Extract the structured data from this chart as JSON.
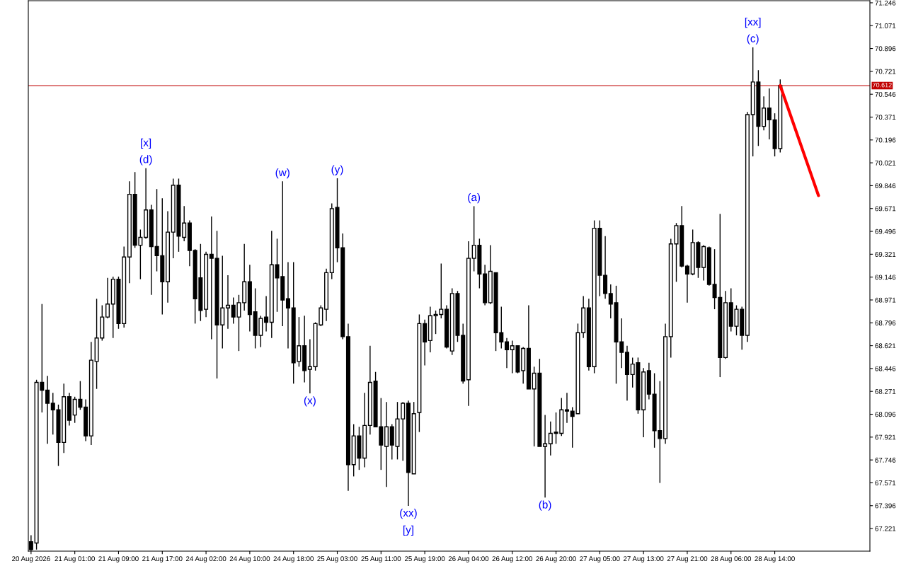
{
  "chart_data": {
    "type": "candlestick",
    "categories": [
      "20 Aug 2026",
      null,
      null,
      null,
      null,
      null,
      null,
      null,
      "21 Aug 01:00",
      null,
      null,
      null,
      null,
      null,
      null,
      null,
      "21 Aug 09:00",
      null,
      null,
      null,
      null,
      null,
      null,
      null,
      "21 Aug 17:00",
      null,
      null,
      null,
      null,
      null,
      null,
      null,
      "24 Aug 02:00",
      null,
      null,
      null,
      null,
      null,
      null,
      null,
      "24 Aug 10:00",
      null,
      null,
      null,
      null,
      null,
      null,
      null,
      "24 Aug 18:00",
      null,
      null,
      null,
      null,
      null,
      null,
      null,
      "25 Aug 03:00",
      null,
      null,
      null,
      null,
      null,
      null,
      null,
      "25 Aug 11:00",
      null,
      null,
      null,
      null,
      null,
      null,
      null,
      "25 Aug 19:00",
      null,
      null,
      null,
      null,
      null,
      null,
      null,
      "26 Aug 04:00",
      null,
      null,
      null,
      null,
      null,
      null,
      null,
      "26 Aug 12:00",
      null,
      null,
      null,
      null,
      null,
      null,
      null,
      "26 Aug 20:00",
      null,
      null,
      null,
      null,
      null,
      null,
      null,
      "27 Aug 05:00",
      null,
      null,
      null,
      null,
      null,
      null,
      null,
      "27 Aug 13:00",
      null,
      null,
      null,
      null,
      null,
      null,
      null,
      "27 Aug 21:00",
      null,
      null,
      null,
      null,
      null,
      null,
      null,
      "28 Aug 06:00",
      null,
      null,
      null,
      null,
      null,
      null,
      null,
      "28 Aug 14:00",
      null,
      null,
      null,
      null,
      null,
      null,
      null,
      null,
      null,
      null,
      null,
      null,
      null,
      null,
      null,
      null,
      null
    ],
    "ylim": [
      67.048,
      71.262
    ],
    "yticks": [
      71.246,
      71.071,
      70.896,
      70.721,
      70.546,
      70.371,
      70.196,
      70.021,
      69.846,
      69.671,
      69.496,
      69.321,
      69.146,
      68.971,
      68.796,
      68.621,
      68.446,
      68.271,
      68.096,
      67.921,
      67.746,
      67.571,
      67.396,
      67.221
    ],
    "grid": false,
    "series": [
      {
        "color": "#000000",
        "ohlc": [
          [
            67.12,
            67.17,
            67.05,
            67.06
          ],
          [
            67.11,
            68.36,
            67.06,
            68.34
          ],
          [
            68.34,
            68.94,
            68.11,
            68.28
          ],
          [
            68.28,
            68.39,
            67.87,
            68.18
          ],
          [
            68.18,
            68.26,
            67.94,
            68.13
          ],
          [
            68.13,
            68.17,
            67.7,
            67.88
          ],
          [
            67.88,
            68.33,
            67.8,
            68.23
          ],
          [
            68.23,
            68.26,
            68.01,
            68.05
          ],
          [
            68.09,
            68.23,
            68.03,
            68.21
          ],
          [
            68.21,
            68.35,
            68.13,
            68.15
          ],
          [
            68.15,
            68.21,
            67.89,
            67.93
          ],
          [
            67.93,
            68.65,
            67.86,
            68.51
          ],
          [
            68.5,
            68.98,
            68.29,
            68.68
          ],
          [
            68.68,
            68.93,
            68.66,
            68.84
          ],
          [
            68.84,
            69.14,
            68.83,
            68.94
          ],
          [
            68.94,
            69.15,
            68.68,
            69.13
          ],
          [
            69.13,
            69.15,
            68.75,
            68.79
          ],
          [
            68.79,
            69.38,
            68.76,
            69.3
          ],
          [
            69.3,
            69.88,
            69.1,
            69.78
          ],
          [
            69.78,
            69.95,
            69.37,
            69.39
          ],
          [
            69.39,
            69.51,
            69.13,
            69.45
          ],
          [
            69.45,
            69.98,
            69.44,
            69.66
          ],
          [
            69.66,
            69.7,
            69.01,
            69.38
          ],
          [
            69.38,
            69.82,
            69.19,
            69.31
          ],
          [
            69.31,
            69.75,
            68.86,
            69.11
          ],
          [
            69.11,
            69.65,
            68.95,
            69.49
          ],
          [
            69.49,
            69.9,
            69.29,
            69.85
          ],
          [
            69.85,
            69.9,
            69.34,
            69.46
          ],
          [
            69.45,
            69.69,
            69.42,
            69.56
          ],
          [
            69.56,
            69.58,
            69.23,
            69.35
          ],
          [
            69.35,
            69.36,
            68.79,
            68.98
          ],
          [
            69.14,
            69.4,
            68.81,
            68.89
          ],
          [
            68.9,
            69.34,
            68.84,
            69.32
          ],
          [
            69.32,
            69.61,
            68.67,
            69.29
          ],
          [
            69.29,
            69.5,
            68.37,
            68.78
          ],
          [
            68.78,
            69.31,
            68.6,
            68.91
          ],
          [
            68.91,
            69.16,
            68.75,
            68.93
          ],
          [
            68.93,
            68.99,
            68.79,
            68.84
          ],
          [
            68.84,
            69.01,
            68.58,
            68.95
          ],
          [
            68.95,
            69.4,
            68.89,
            69.11
          ],
          [
            69.11,
            69.24,
            68.73,
            68.86
          ],
          [
            68.88,
            69.06,
            68.6,
            68.7
          ],
          [
            68.7,
            68.85,
            68.61,
            68.83
          ],
          [
            68.84,
            69.0,
            68.73,
            68.8
          ],
          [
            68.8,
            69.5,
            68.68,
            69.24
          ],
          [
            69.24,
            69.44,
            68.88,
            69.14
          ],
          [
            69.15,
            69.879,
            68.77,
            68.97
          ],
          [
            68.98,
            69.26,
            68.6,
            68.91
          ],
          [
            68.91,
            69.26,
            68.33,
            68.49
          ],
          [
            68.5,
            68.84,
            68.46,
            68.62
          ],
          [
            68.62,
            68.85,
            68.34,
            68.43
          ],
          [
            68.44,
            68.67,
            68.256,
            68.46
          ],
          [
            68.46,
            68.8,
            68.43,
            68.79
          ],
          [
            68.78,
            68.93,
            68.77,
            68.91
          ],
          [
            68.9,
            69.21,
            68.81,
            69.18
          ],
          [
            69.18,
            69.71,
            69.13,
            69.67
          ],
          [
            69.68,
            69.903,
            69.26,
            69.37
          ],
          [
            69.37,
            69.48,
            68.67,
            68.69
          ],
          [
            68.69,
            68.79,
            67.51,
            67.71
          ],
          [
            67.71,
            68.02,
            67.62,
            67.93
          ],
          [
            67.93,
            68.0,
            67.67,
            67.76
          ],
          [
            67.76,
            68.26,
            67.69,
            68.01
          ],
          [
            68.01,
            68.62,
            67.94,
            68.34
          ],
          [
            68.35,
            68.42,
            68.0,
            68.0
          ],
          [
            68.0,
            68.22,
            67.67,
            67.86
          ],
          [
            67.85,
            68.19,
            67.54,
            68.0
          ],
          [
            68.0,
            68.02,
            67.75,
            67.86
          ],
          [
            67.85,
            68.19,
            67.75,
            68.06
          ],
          [
            68.06,
            68.19,
            67.74,
            68.18
          ],
          [
            68.18,
            68.2,
            67.395,
            67.65
          ],
          [
            67.64,
            68.19,
            67.64,
            68.1
          ],
          [
            68.11,
            68.86,
            67.96,
            68.79
          ],
          [
            68.79,
            68.82,
            68.47,
            68.65
          ],
          [
            68.66,
            68.92,
            68.57,
            68.85
          ],
          [
            68.85,
            68.89,
            68.71,
            68.86
          ],
          [
            68.86,
            69.25,
            68.83,
            68.9
          ],
          [
            68.9,
            68.93,
            68.6,
            68.61
          ],
          [
            68.58,
            69.06,
            68.55,
            69.02
          ],
          [
            69.02,
            69.04,
            68.65,
            68.7
          ],
          [
            68.7,
            68.79,
            68.33,
            68.35
          ],
          [
            68.36,
            69.42,
            68.16,
            69.29
          ],
          [
            69.29,
            69.689,
            69.19,
            69.39
          ],
          [
            69.39,
            69.44,
            69.06,
            69.17
          ],
          [
            69.17,
            69.24,
            68.93,
            68.95
          ],
          [
            68.95,
            69.39,
            68.94,
            69.19
          ],
          [
            69.18,
            69.18,
            68.58,
            68.72
          ],
          [
            68.72,
            68.92,
            68.6,
            68.65
          ],
          [
            68.65,
            68.68,
            68.45,
            68.59
          ],
          [
            68.59,
            68.66,
            68.41,
            68.62
          ],
          [
            68.62,
            68.62,
            68.41,
            68.42
          ],
          [
            68.43,
            68.61,
            68.33,
            68.6
          ],
          [
            68.6,
            68.93,
            68.29,
            68.29
          ],
          [
            68.29,
            68.46,
            67.85,
            68.41
          ],
          [
            68.41,
            68.52,
            67.85,
            67.85
          ],
          [
            67.85,
            68.09,
            67.458,
            67.87
          ],
          [
            67.87,
            68.04,
            67.78,
            67.95
          ],
          [
            67.96,
            68.11,
            67.87,
            67.95
          ],
          [
            67.95,
            68.22,
            67.93,
            68.13
          ],
          [
            68.13,
            68.26,
            68.03,
            68.12
          ],
          [
            68.12,
            68.15,
            67.84,
            68.08
          ],
          [
            68.1,
            68.79,
            68.1,
            68.72
          ],
          [
            68.72,
            69.0,
            68.68,
            68.91
          ],
          [
            68.91,
            68.98,
            68.43,
            68.46
          ],
          [
            68.46,
            69.58,
            68.41,
            69.52
          ],
          [
            69.52,
            69.58,
            69.0,
            69.16
          ],
          [
            69.16,
            69.46,
            68.98,
            69.02
          ],
          [
            69.02,
            69.09,
            68.83,
            68.94
          ],
          [
            68.95,
            69.08,
            68.33,
            68.65
          ],
          [
            68.65,
            68.83,
            68.45,
            68.57
          ],
          [
            68.57,
            68.62,
            68.2,
            68.4
          ],
          [
            68.4,
            68.53,
            68.3,
            68.48
          ],
          [
            68.49,
            68.53,
            68.1,
            68.13
          ],
          [
            68.13,
            68.45,
            67.92,
            68.42
          ],
          [
            68.43,
            68.49,
            68.21,
            68.25
          ],
          [
            68.25,
            68.41,
            67.84,
            67.97
          ],
          [
            67.97,
            68.35,
            67.57,
            67.91
          ],
          [
            67.91,
            68.79,
            67.87,
            68.69
          ],
          [
            68.69,
            69.44,
            68.53,
            69.4
          ],
          [
            69.4,
            69.56,
            69.11,
            69.54
          ],
          [
            69.54,
            69.69,
            69.22,
            69.23
          ],
          [
            69.23,
            69.24,
            68.95,
            69.17
          ],
          [
            69.17,
            69.51,
            69.16,
            69.41
          ],
          [
            69.41,
            69.42,
            69.14,
            69.22
          ],
          [
            69.22,
            69.39,
            69.12,
            69.38
          ],
          [
            69.37,
            69.38,
            69.08,
            69.09
          ],
          [
            69.09,
            69.36,
            68.9,
            68.99
          ],
          [
            68.99,
            69.63,
            68.38,
            68.53
          ],
          [
            68.53,
            69.04,
            68.52,
            68.95
          ],
          [
            68.95,
            69.06,
            68.73,
            68.77
          ],
          [
            68.77,
            68.93,
            68.7,
            68.9
          ],
          [
            68.9,
            68.92,
            68.59,
            68.7
          ],
          [
            68.7,
            70.41,
            68.65,
            70.39
          ],
          [
            70.39,
            70.905,
            70.07,
            70.64
          ],
          [
            70.64,
            70.73,
            70.15,
            70.3
          ],
          [
            70.3,
            70.53,
            70.27,
            70.44
          ],
          [
            70.44,
            70.59,
            70.2,
            70.35
          ],
          [
            70.35,
            70.4,
            70.07,
            70.13
          ],
          [
            70.13,
            70.66,
            70.1,
            70.612
          ],
          null,
          null,
          null,
          null,
          null,
          null,
          null,
          null,
          null,
          null,
          null,
          null,
          null,
          null,
          null,
          null
        ]
      },
      {
        "type": "line",
        "color": "#ff0000",
        "values": [
          null,
          null,
          null,
          null,
          null,
          null,
          null,
          null,
          null,
          null,
          null,
          null,
          null,
          null,
          null,
          null,
          null,
          null,
          null,
          null,
          null,
          null,
          null,
          null,
          null,
          null,
          null,
          null,
          null,
          null,
          null,
          null,
          null,
          null,
          null,
          null,
          null,
          null,
          null,
          null,
          null,
          null,
          null,
          null,
          null,
          null,
          null,
          null,
          null,
          null,
          null,
          null,
          null,
          null,
          null,
          null,
          null,
          null,
          null,
          null,
          null,
          null,
          null,
          null,
          null,
          null,
          null,
          null,
          null,
          null,
          null,
          null,
          null,
          null,
          null,
          null,
          null,
          null,
          null,
          null,
          null,
          null,
          null,
          null,
          null,
          null,
          null,
          null,
          null,
          null,
          null,
          null,
          null,
          null,
          null,
          null,
          null,
          null,
          null,
          null,
          null,
          null,
          null,
          null,
          null,
          null,
          null,
          null,
          null,
          null,
          null,
          null,
          null,
          null,
          null,
          null,
          null,
          null,
          null,
          null,
          null,
          null,
          null,
          null,
          null,
          null,
          null,
          null,
          null,
          null,
          null,
          null,
          null,
          null,
          null,
          null,
          null,
          70.612,
          null,
          null,
          null,
          null,
          null,
          null,
          69.77,
          null,
          null,
          null,
          null,
          null,
          null,
          null,
          null,
          null
        ]
      }
    ],
    "ref_lines": [
      {
        "axis": "y",
        "value": 70.612,
        "label": "70.612",
        "color": "#c00000"
      }
    ],
    "annotations": [
      {
        "text": "(d)",
        "y": 69.98
      },
      {
        "text": "[x]",
        "y": 69.98
      },
      {
        "text": "(w)",
        "y": 69.879
      },
      {
        "text": "(x)",
        "y": 68.256
      },
      {
        "text": "(y)",
        "y": 69.903
      },
      {
        "text": "(xx)",
        "y": 67.395
      },
      {
        "text": "[y]",
        "y": 67.395
      },
      {
        "text": "(a)",
        "y": 69.689
      },
      {
        "text": "(b)",
        "y": 67.458
      },
      {
        "text": "(c)",
        "y": 70.905
      },
      {
        "text": "[xx]",
        "y": 70.905
      }
    ]
  }
}
